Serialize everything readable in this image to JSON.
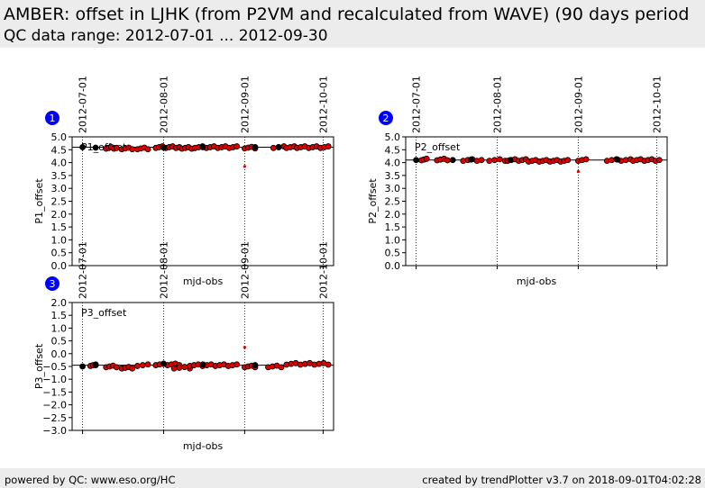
{
  "header": {
    "title": "AMBER: offset in LJHK (from P2VM and recalculated from WAVE) (90 days period",
    "subtitle": "QC data range: 2012-07-01 ... 2012-09-30"
  },
  "footer": {
    "left": "powered by QC: www.eso.org/HC",
    "right": "created by trendPlotter v3.7 on 2018-09-01T04:02:28"
  },
  "colors": {
    "marker_fill": "#dd0000",
    "marker_edge": "#000000",
    "badge": "#0000ff",
    "header_bg": "#ececec"
  },
  "chart_data": [
    {
      "type": "scatter",
      "badge": "1",
      "legend": "P1_offset",
      "xlabel": "mjd-obs",
      "ylabel": "P1_offset",
      "ylim": [
        0.0,
        5.0
      ],
      "yticks": [
        "0.0",
        "0.5",
        "1.0",
        "1.5",
        "2.0",
        "2.5",
        "3.0",
        "3.5",
        "4.0",
        "4.5",
        "5.0"
      ],
      "xlim": [
        56105,
        56205
      ],
      "date_ticks": [
        {
          "label": "2012-07-01",
          "mjd": 56109
        },
        {
          "label": "2012-08-01",
          "mjd": 56140
        },
        {
          "label": "2012-09-01",
          "mjd": 56171
        },
        {
          "label": "2012-10-01",
          "mjd": 56201
        }
      ],
      "grid": "vertical dotted lines at date ticks",
      "reference_line": 4.6,
      "black_points": [
        [
          56109,
          4.6
        ],
        [
          56114,
          4.58
        ],
        [
          56140,
          4.58
        ],
        [
          56155,
          4.6
        ],
        [
          56175,
          4.6
        ],
        [
          56184,
          4.6
        ]
      ],
      "outliers": [
        [
          56171,
          3.85
        ]
      ],
      "clusters": [
        {
          "x0": 56118,
          "x1": 56122,
          "y": 4.57,
          "n": 5
        },
        {
          "x0": 56124,
          "x1": 56128,
          "y": 4.55,
          "n": 4
        },
        {
          "x0": 56130,
          "x1": 56134,
          "y": 4.55,
          "n": 4
        },
        {
          "x0": 56137,
          "x1": 56146,
          "y": 4.6,
          "n": 8
        },
        {
          "x0": 56147,
          "x1": 56152,
          "y": 4.57,
          "n": 5
        },
        {
          "x0": 56152,
          "x1": 56168,
          "y": 4.6,
          "n": 12
        },
        {
          "x0": 56171,
          "x1": 56175,
          "y": 4.58,
          "n": 4
        },
        {
          "x0": 56182,
          "x1": 56186,
          "y": 4.6,
          "n": 3
        },
        {
          "x0": 56187,
          "x1": 56190,
          "y": 4.6,
          "n": 3
        },
        {
          "x0": 56191,
          "x1": 56203,
          "y": 4.6,
          "n": 9
        }
      ]
    },
    {
      "type": "scatter",
      "badge": "2",
      "legend": "P2_offset",
      "xlabel": "mjd-obs",
      "ylabel": "P2_offset",
      "ylim": [
        0.0,
        5.0
      ],
      "yticks": [
        "0.0",
        "0.5",
        "1.0",
        "1.5",
        "2.0",
        "2.5",
        "3.0",
        "3.5",
        "4.0",
        "4.5",
        "5.0"
      ],
      "xlim": [
        56105,
        56205
      ],
      "date_ticks": [
        {
          "label": "2012-07-01",
          "mjd": 56109
        },
        {
          "label": "2012-08-01",
          "mjd": 56140
        },
        {
          "label": "2012-09-01",
          "mjd": 56171
        },
        {
          "label": "2012-10-01",
          "mjd": 56201
        }
      ],
      "grid": "vertical dotted lines at date ticks",
      "reference_line": 4.1,
      "black_points": [
        [
          56109,
          4.1
        ],
        [
          56123,
          4.1
        ],
        [
          56130,
          4.12
        ],
        [
          56145,
          4.1
        ],
        [
          56186,
          4.12
        ]
      ],
      "outliers": [
        [
          56171,
          3.65
        ]
      ],
      "clusters": [
        {
          "x0": 56111,
          "x1": 56113,
          "y": 4.12,
          "n": 3
        },
        {
          "x0": 56117,
          "x1": 56121,
          "y": 4.12,
          "n": 4
        },
        {
          "x0": 56127,
          "x1": 56134,
          "y": 4.1,
          "n": 5
        },
        {
          "x0": 56137,
          "x1": 56143,
          "y": 4.1,
          "n": 4
        },
        {
          "x0": 56144,
          "x1": 56151,
          "y": 4.1,
          "n": 6
        },
        {
          "x0": 56152,
          "x1": 56167,
          "y": 4.07,
          "n": 12
        },
        {
          "x0": 56171,
          "x1": 56174,
          "y": 4.1,
          "n": 3
        },
        {
          "x0": 56182,
          "x1": 56191,
          "y": 4.1,
          "n": 6
        },
        {
          "x0": 56192,
          "x1": 56202,
          "y": 4.1,
          "n": 8
        }
      ]
    },
    {
      "type": "scatter",
      "badge": "3",
      "legend": "P3_offset",
      "xlabel": "mjd-obs",
      "ylabel": "P3_offset",
      "ylim": [
        -3.0,
        2.0
      ],
      "yticks": [
        "−3.0",
        "−2.5",
        "−2.0",
        "−1.5",
        "−1.0",
        "−0.5",
        "0.0",
        "0.5",
        "1.0",
        "1.5",
        "2.0"
      ],
      "xlim": [
        56105,
        56205
      ],
      "date_ticks": [
        {
          "label": "2012-07-01",
          "mjd": 56109
        },
        {
          "label": "2012-08-01",
          "mjd": 56140
        },
        {
          "label": "2012-09-01",
          "mjd": 56171
        },
        {
          "label": "2012-10-01",
          "mjd": 56201
        }
      ],
      "grid": "vertical dotted lines at date ticks",
      "reference_line": -0.45,
      "black_points": [
        [
          56109,
          -0.5
        ],
        [
          56114,
          -0.45
        ],
        [
          56140,
          -0.4
        ],
        [
          56155,
          -0.42
        ],
        [
          56175,
          -0.45
        ]
      ],
      "outliers": [
        [
          56171,
          0.25
        ]
      ],
      "clusters": [
        {
          "x0": 56112,
          "x1": 56114,
          "y": -0.45,
          "n": 3
        },
        {
          "x0": 56118,
          "x1": 56122,
          "y": -0.5,
          "n": 4
        },
        {
          "x0": 56124,
          "x1": 56128,
          "y": -0.55,
          "n": 4
        },
        {
          "x0": 56130,
          "x1": 56134,
          "y": -0.45,
          "n": 3
        },
        {
          "x0": 56137,
          "x1": 56146,
          "y": -0.42,
          "n": 7
        },
        {
          "x0": 56144,
          "x1": 56150,
          "y": -0.55,
          "n": 4
        },
        {
          "x0": 56150,
          "x1": 56168,
          "y": -0.45,
          "n": 12
        },
        {
          "x0": 56171,
          "x1": 56175,
          "y": -0.5,
          "n": 4
        },
        {
          "x0": 56180,
          "x1": 56185,
          "y": -0.5,
          "n": 4
        },
        {
          "x0": 56187,
          "x1": 56203,
          "y": -0.4,
          "n": 10
        }
      ]
    }
  ]
}
